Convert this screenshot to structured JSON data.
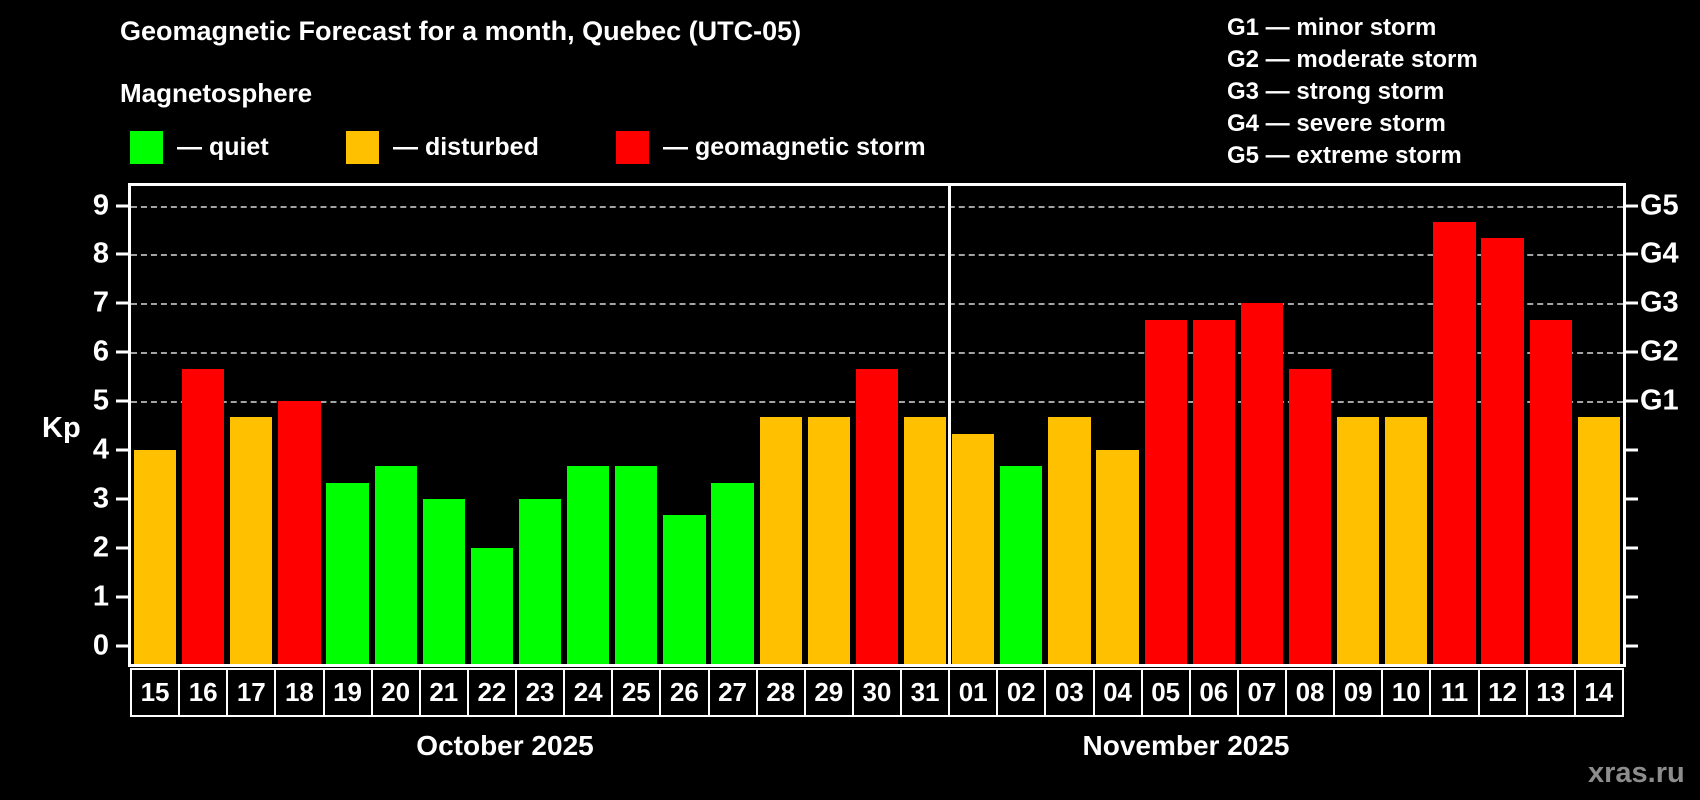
{
  "header": {
    "title": "Geomagnetic Forecast for a month, Quebec (UTC-05)",
    "subtitle": "Magnetosphere"
  },
  "legend": {
    "quiet_label": "— quiet",
    "disturbed_label": "— disturbed",
    "storm_label": "— geomagnetic storm"
  },
  "g_legend": [
    "G1 — minor storm",
    "G2 — moderate storm",
    "G3 — strong storm",
    "G4 — severe storm",
    "G5 — extreme storm"
  ],
  "colors": {
    "quiet": "#00ff00",
    "disturbed": "#ffc000",
    "storm": "#ff0000",
    "gridline": "#a3a3a3"
  },
  "watermark": "xras.ru",
  "chart_data": {
    "type": "bar",
    "title": "Geomagnetic Forecast for a month, Quebec (UTC-05)",
    "ylabel": "Kp",
    "ylim": [
      -0.37,
      9.4
    ],
    "yticks": [
      0,
      1,
      2,
      3,
      4,
      5,
      6,
      7,
      8,
      9
    ],
    "gridlines_kp": [
      5,
      6,
      7,
      8,
      9
    ],
    "grid": true,
    "legend_position": "top",
    "right_axis": [
      {
        "kp": 5,
        "label": "G1"
      },
      {
        "kp": 6,
        "label": "G2"
      },
      {
        "kp": 7,
        "label": "G3"
      },
      {
        "kp": 8,
        "label": "G4"
      },
      {
        "kp": 9,
        "label": "G5"
      }
    ],
    "sections": [
      {
        "label": "October 2025",
        "count": 17
      },
      {
        "label": "November 2025",
        "count": 14
      }
    ],
    "days": [
      {
        "label": "15",
        "kp": 4.0,
        "status": "disturbed"
      },
      {
        "label": "16",
        "kp": 5.67,
        "status": "storm"
      },
      {
        "label": "17",
        "kp": 4.67,
        "status": "disturbed"
      },
      {
        "label": "18",
        "kp": 5.0,
        "status": "storm"
      },
      {
        "label": "19",
        "kp": 3.33,
        "status": "quiet"
      },
      {
        "label": "20",
        "kp": 3.67,
        "status": "quiet"
      },
      {
        "label": "21",
        "kp": 3.0,
        "status": "quiet"
      },
      {
        "label": "22",
        "kp": 2.0,
        "status": "quiet"
      },
      {
        "label": "23",
        "kp": 3.0,
        "status": "quiet"
      },
      {
        "label": "24",
        "kp": 3.67,
        "status": "quiet"
      },
      {
        "label": "25",
        "kp": 3.67,
        "status": "quiet"
      },
      {
        "label": "26",
        "kp": 2.67,
        "status": "quiet"
      },
      {
        "label": "27",
        "kp": 3.33,
        "status": "quiet"
      },
      {
        "label": "28",
        "kp": 4.67,
        "status": "disturbed"
      },
      {
        "label": "29",
        "kp": 4.67,
        "status": "disturbed"
      },
      {
        "label": "30",
        "kp": 5.67,
        "status": "storm"
      },
      {
        "label": "31",
        "kp": 4.67,
        "status": "disturbed"
      },
      {
        "label": "01",
        "kp": 4.33,
        "status": "disturbed"
      },
      {
        "label": "02",
        "kp": 3.67,
        "status": "quiet"
      },
      {
        "label": "03",
        "kp": 4.67,
        "status": "disturbed"
      },
      {
        "label": "04",
        "kp": 4.0,
        "status": "disturbed"
      },
      {
        "label": "05",
        "kp": 6.67,
        "status": "storm"
      },
      {
        "label": "06",
        "kp": 6.67,
        "status": "storm"
      },
      {
        "label": "07",
        "kp": 7.0,
        "status": "storm"
      },
      {
        "label": "08",
        "kp": 5.67,
        "status": "storm"
      },
      {
        "label": "09",
        "kp": 4.67,
        "status": "disturbed"
      },
      {
        "label": "10",
        "kp": 4.67,
        "status": "disturbed"
      },
      {
        "label": "11",
        "kp": 8.67,
        "status": "storm"
      },
      {
        "label": "12",
        "kp": 8.33,
        "status": "storm"
      },
      {
        "label": "13",
        "kp": 6.67,
        "status": "storm"
      },
      {
        "label": "14",
        "kp": 4.67,
        "status": "disturbed"
      }
    ]
  }
}
